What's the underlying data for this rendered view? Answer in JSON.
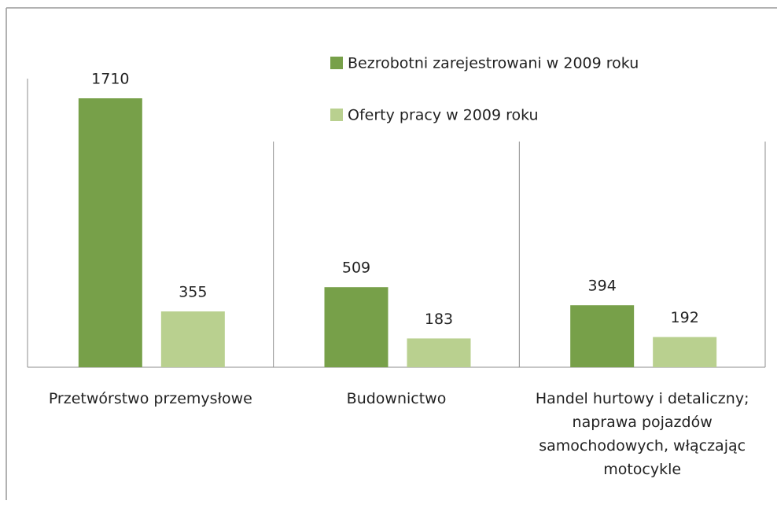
{
  "chart_data": {
    "type": "bar",
    "categories": [
      "Przetwórstwo przemysłowe",
      "Budownictwo",
      "Handel hurtowy i detaliczny; naprawa pojazdów samochodowych, włączając motocykle"
    ],
    "series": [
      {
        "name": "Bezrobotni zarejestrowani w 2009 roku",
        "color": "#77a049",
        "values": [
          1710,
          509,
          394
        ]
      },
      {
        "name": "Oferty pracy w 2009 roku",
        "color": "#b9d08f",
        "values": [
          355,
          183,
          192
        ]
      }
    ],
    "legend": "top-right"
  }
}
